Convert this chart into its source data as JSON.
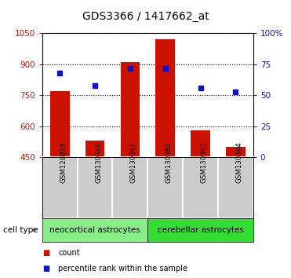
{
  "title": "GDS3366 / 1417662_at",
  "samples": [
    "GSM128874",
    "GSM130340",
    "GSM130361",
    "GSM130362",
    "GSM130363",
    "GSM130364"
  ],
  "counts": [
    770,
    530,
    910,
    1020,
    580,
    500
  ],
  "percentiles": [
    68,
    58,
    72,
    72,
    56,
    53
  ],
  "ylim_left": [
    450,
    1050
  ],
  "ylim_right": [
    0,
    100
  ],
  "yticks_left": [
    450,
    600,
    750,
    900,
    1050
  ],
  "yticks_right": [
    0,
    25,
    50,
    75,
    100
  ],
  "ytick_labels_right": [
    "0",
    "25",
    "50",
    "75",
    "100%"
  ],
  "bar_color": "#cc1100",
  "dot_color": "#1111cc",
  "groups": [
    {
      "label": "neocortical astrocytes",
      "indices": [
        0,
        1,
        2
      ],
      "color": "#88ee88"
    },
    {
      "label": "cerebellar astrocytes",
      "indices": [
        3,
        4,
        5
      ],
      "color": "#33dd33"
    }
  ],
  "cell_type_label": "cell type",
  "legend_count": "count",
  "legend_percentile": "percentile rank within the sample",
  "tick_area_color": "#cccccc",
  "title_fontsize": 10
}
